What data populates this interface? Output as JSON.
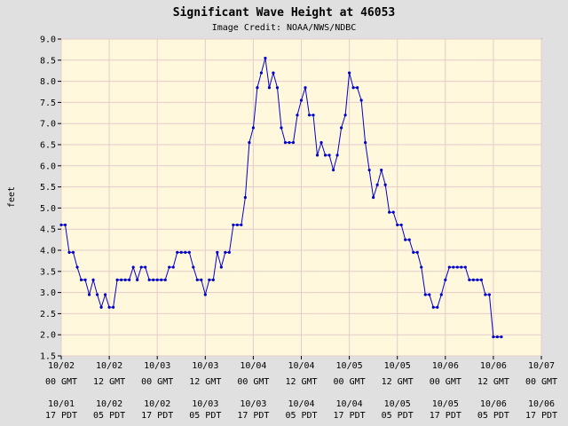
{
  "chart_data": {
    "type": "line",
    "title": "Significant Wave Height at 46053",
    "subtitle": "Image Credit: NOAA/NWS/NDBC",
    "xlabel": "",
    "ylabel": "feet",
    "ylim": [
      1.5,
      9.0
    ],
    "yticks": [
      "1.5",
      "2.0",
      "2.5",
      "3.0",
      "3.5",
      "4.0",
      "4.5",
      "5.0",
      "5.5",
      "6.0",
      "6.5",
      "7.0",
      "7.5",
      "8.0",
      "8.5",
      "9.0"
    ],
    "xlim": [
      0,
      120
    ],
    "xticks": [
      {
        "x": 0,
        "gmt_date": "10/02",
        "gmt_time": "00 GMT",
        "pdt_date": "10/01",
        "pdt_time": "17 PDT"
      },
      {
        "x": 12,
        "gmt_date": "10/02",
        "gmt_time": "12 GMT",
        "pdt_date": "10/02",
        "pdt_time": "05 PDT"
      },
      {
        "x": 24,
        "gmt_date": "10/03",
        "gmt_time": "00 GMT",
        "pdt_date": "10/02",
        "pdt_time": "17 PDT"
      },
      {
        "x": 36,
        "gmt_date": "10/03",
        "gmt_time": "12 GMT",
        "pdt_date": "10/03",
        "pdt_time": "05 PDT"
      },
      {
        "x": 48,
        "gmt_date": "10/04",
        "gmt_time": "00 GMT",
        "pdt_date": "10/03",
        "pdt_time": "17 PDT"
      },
      {
        "x": 60,
        "gmt_date": "10/04",
        "gmt_time": "12 GMT",
        "pdt_date": "10/04",
        "pdt_time": "05 PDT"
      },
      {
        "x": 72,
        "gmt_date": "10/05",
        "gmt_time": "00 GMT",
        "pdt_date": "10/04",
        "pdt_time": "17 PDT"
      },
      {
        "x": 84,
        "gmt_date": "10/05",
        "gmt_time": "12 GMT",
        "pdt_date": "10/05",
        "pdt_time": "05 PDT"
      },
      {
        "x": 96,
        "gmt_date": "10/06",
        "gmt_time": "00 GMT",
        "pdt_date": "10/05",
        "pdt_time": "17 PDT"
      },
      {
        "x": 108,
        "gmt_date": "10/06",
        "gmt_time": "12 GMT",
        "pdt_date": "10/06",
        "pdt_time": "05 PDT"
      },
      {
        "x": 120,
        "gmt_date": "10/07",
        "gmt_time": "00 GMT",
        "pdt_date": "10/06",
        "pdt_time": "17 PDT"
      }
    ],
    "grid": true,
    "colors": {
      "line": "#0000cc",
      "plot_bg": "#fff8dc",
      "page_bg": "#e0e0e0",
      "grid": "#e6cccc"
    },
    "series": [
      {
        "x": [
          0,
          1,
          2,
          3,
          4,
          5,
          6,
          7,
          8,
          9,
          10,
          11,
          12,
          13,
          14,
          15,
          16,
          17,
          18,
          19,
          20,
          21,
          22,
          23,
          24,
          25,
          26,
          27,
          28,
          29,
          30,
          31,
          32,
          33,
          34,
          35,
          36,
          37,
          38,
          39,
          40,
          41,
          42,
          43,
          44,
          45,
          46,
          47,
          48,
          49,
          50,
          51,
          52,
          53,
          54,
          55,
          56,
          57,
          58,
          59,
          60,
          61,
          62,
          63,
          64,
          65,
          66,
          67,
          68,
          69,
          70,
          71,
          72,
          73,
          74,
          75,
          76,
          77,
          78,
          79,
          80,
          81,
          82,
          83,
          84,
          85,
          86,
          87,
          88,
          89,
          90,
          91,
          92,
          93,
          94,
          95,
          96,
          97,
          98,
          99,
          100,
          101,
          102,
          103,
          104,
          105,
          106,
          107,
          108,
          109,
          110,
          111
        ],
        "values": [
          4.6,
          4.6,
          3.95,
          3.95,
          3.6,
          3.3,
          3.3,
          2.95,
          3.3,
          2.95,
          2.65,
          2.95,
          2.65,
          2.65,
          3.3,
          3.3,
          3.3,
          3.3,
          3.6,
          3.3,
          3.6,
          3.6,
          3.3,
          3.3,
          3.3,
          3.3,
          3.3,
          3.6,
          3.6,
          3.95,
          3.95,
          3.95,
          3.95,
          3.6,
          3.3,
          3.3,
          2.95,
          3.3,
          3.3,
          3.95,
          3.6,
          3.95,
          3.95,
          4.6,
          4.6,
          4.6,
          5.25,
          6.55,
          6.9,
          7.85,
          8.2,
          8.55,
          7.85,
          8.2,
          7.85,
          6.9,
          6.55,
          6.55,
          6.55,
          7.2,
          7.55,
          7.85,
          7.2,
          7.2,
          6.25,
          6.55,
          6.25,
          6.25,
          5.9,
          6.25,
          6.9,
          7.2,
          8.2,
          7.85,
          7.85,
          7.55,
          6.55,
          5.9,
          5.25,
          5.55,
          5.9,
          5.55,
          4.9,
          4.9,
          4.6,
          4.6,
          4.25,
          4.25,
          3.95,
          3.95,
          3.6,
          2.95,
          2.95,
          2.65,
          2.65,
          2.95,
          3.3,
          3.6,
          3.6,
          3.6,
          3.6,
          3.6,
          3.3,
          3.3,
          3.3,
          3.3,
          2.95,
          2.95,
          1.95,
          1.95,
          1.95,
          null
        ]
      }
    ]
  }
}
